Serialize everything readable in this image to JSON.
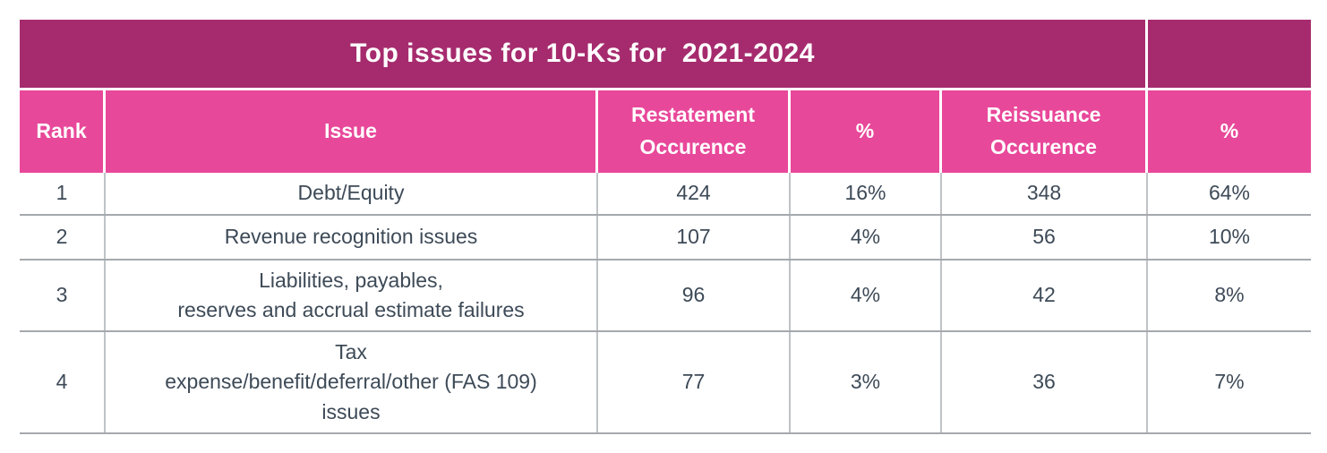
{
  "title": "Top issues for 10-Ks for  2021-2024",
  "columns": [
    "Rank",
    "Issue",
    "Restatement\nOccurence",
    "%",
    "Reissuance\nOccurence",
    "%"
  ],
  "rows": [
    {
      "rank": "1",
      "issue": "Debt/Equity",
      "restatement_occurence": "424",
      "restatement_pct": "16%",
      "reissuance_occurence": "348",
      "reissuance_pct": "64%"
    },
    {
      "rank": "2",
      "issue": "Revenue recognition issues",
      "restatement_occurence": "107",
      "restatement_pct": "4%",
      "reissuance_occurence": "56",
      "reissuance_pct": "10%"
    },
    {
      "rank": "3",
      "issue": "Liabilities, payables,\nreserves and accrual estimate failures",
      "restatement_occurence": "96",
      "restatement_pct": "4%",
      "reissuance_occurence": "42",
      "reissuance_pct": "8%"
    },
    {
      "rank": "4",
      "issue": "Tax\nexpense/benefit/deferral/other (FAS 109)\nissues",
      "restatement_occurence": "77",
      "restatement_pct": "3%",
      "reissuance_occurence": "36",
      "reissuance_pct": "7%"
    }
  ],
  "colors": {
    "title_bg": "#a62b6e",
    "header_bg": "#e8489a",
    "header_text": "#ffffff",
    "body_text": "#3d4a57",
    "row_line": "#a5a9ad",
    "col_line": "#bfc3c6",
    "page_bg": "#ffffff"
  }
}
